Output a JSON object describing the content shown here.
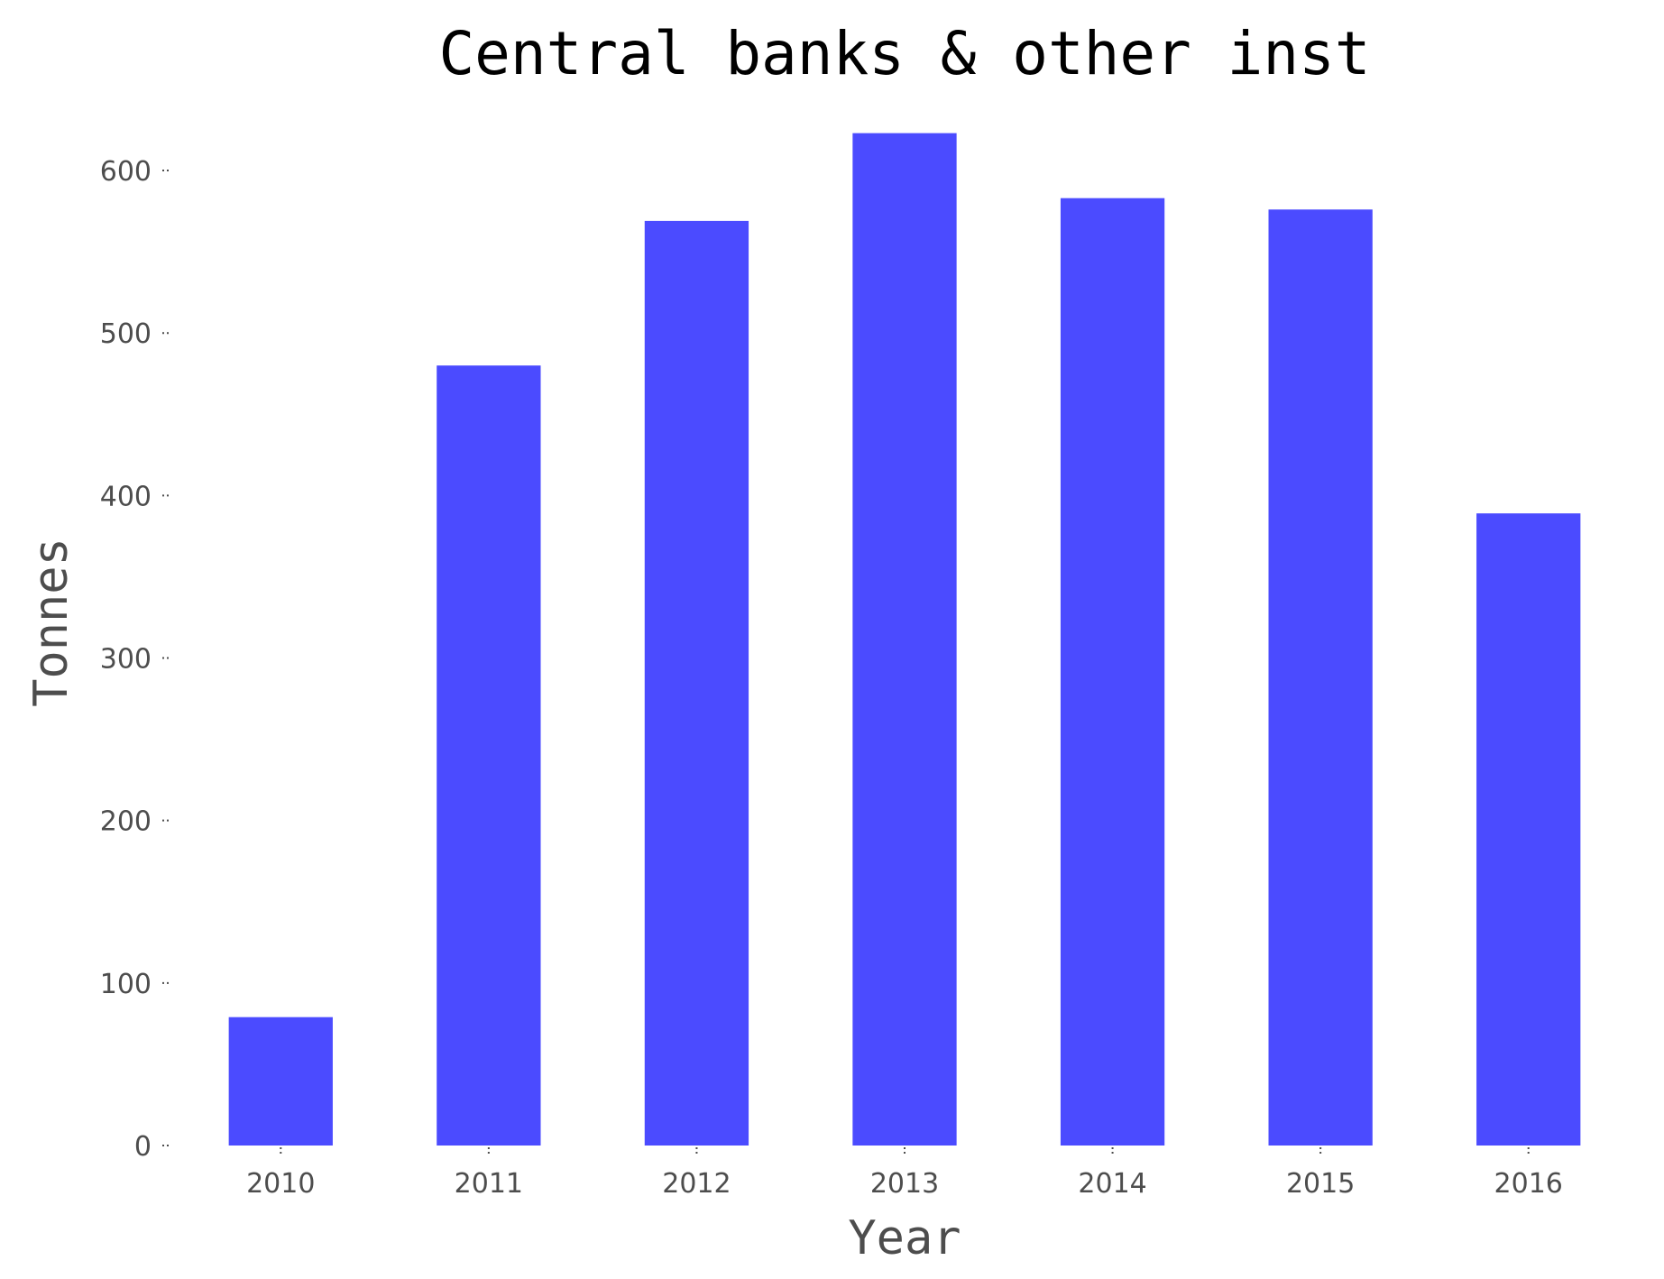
{
  "chart_data": {
    "type": "bar",
    "title": "Central banks & other inst",
    "xlabel": "Year",
    "ylabel": "Tonnes",
    "categories": [
      "2010",
      "2011",
      "2012",
      "2013",
      "2014",
      "2015",
      "2016"
    ],
    "values": [
      79,
      480,
      569,
      623,
      583,
      576,
      389
    ],
    "ylim": [
      0,
      630
    ],
    "yticks": [
      0,
      100,
      200,
      300,
      400,
      500,
      600
    ],
    "grid": false,
    "bar_color": "#4b4bff"
  }
}
